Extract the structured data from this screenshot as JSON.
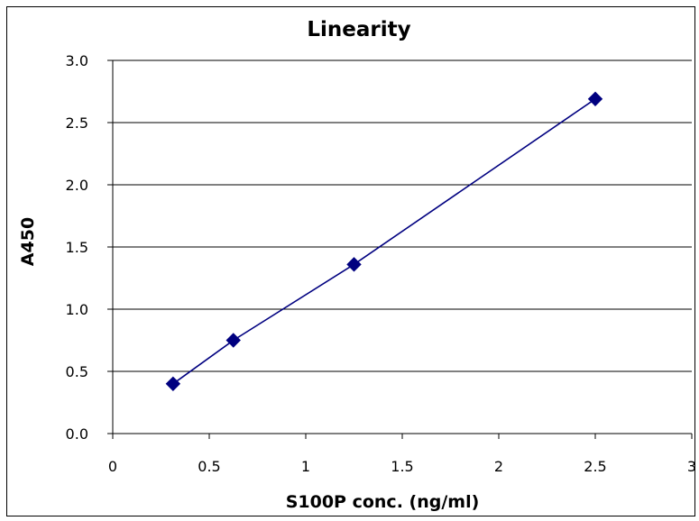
{
  "chart_data": {
    "type": "line",
    "title": "Linearity",
    "xlabel": "S100P conc. (ng/ml)",
    "ylabel": "A450",
    "xlim": [
      0,
      3
    ],
    "ylim": [
      0,
      3
    ],
    "x_ticks": [
      "0",
      "0.5",
      "1",
      "1.5",
      "2",
      "2.5",
      "3"
    ],
    "y_ticks": [
      "0.0",
      "0.5",
      "1.0",
      "1.5",
      "2.0",
      "2.5",
      "3.0"
    ],
    "grid": "horizontal",
    "legend": "none",
    "series": [
      {
        "x": [
          0.3125,
          0.625,
          1.25,
          2.5
        ],
        "y": [
          0.4,
          0.75,
          1.36,
          2.69
        ],
        "color": "#000080",
        "marker": "diamond"
      }
    ]
  }
}
